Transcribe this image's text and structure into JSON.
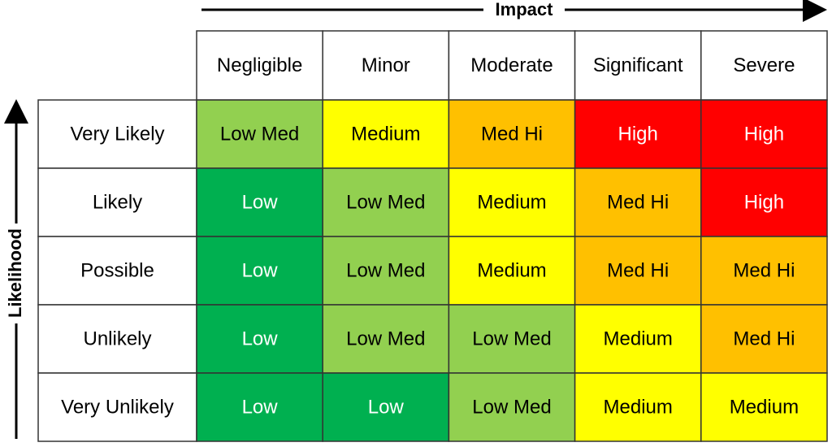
{
  "impact_label": "Impact",
  "likelihood_label": "Likelihood",
  "columns": [
    "Negligible",
    "Minor",
    "Moderate",
    "Significant",
    "Severe"
  ],
  "rows": [
    {
      "label": "Very Likely",
      "cells": [
        "Low Med",
        "Medium",
        "Med Hi",
        "High",
        "High"
      ]
    },
    {
      "label": "Likely",
      "cells": [
        "Low",
        "Low Med",
        "Medium",
        "Med Hi",
        "High"
      ]
    },
    {
      "label": "Possible",
      "cells": [
        "Low",
        "Low Med",
        "Medium",
        "Med Hi",
        "Med Hi"
      ]
    },
    {
      "label": "Unlikely",
      "cells": [
        "Low",
        "Low Med",
        "Low Med",
        "Medium",
        "Med Hi"
      ]
    },
    {
      "label": "Very Unlikely",
      "cells": [
        "Low",
        "Low",
        "Low Med",
        "Medium",
        "Medium"
      ]
    }
  ],
  "level_styles": {
    "Low": {
      "background": "#00b050",
      "text_color": "#ffffff"
    },
    "Low Med": {
      "background": "#92d050",
      "text_color": "#000000"
    },
    "Medium": {
      "background": "#ffff00",
      "text_color": "#000000"
    },
    "Med Hi": {
      "background": "#ffc000",
      "text_color": "#000000"
    },
    "High": {
      "background": "#ff0000",
      "text_color": "#ffffff"
    }
  }
}
